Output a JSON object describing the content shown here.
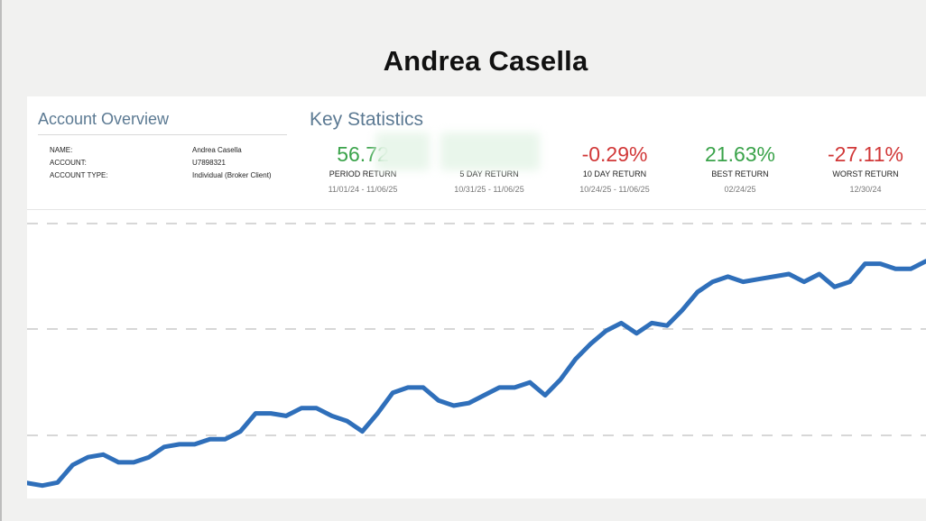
{
  "slide": {
    "title": "Andrea Casella"
  },
  "overview": {
    "title": "Account Overview",
    "rows": [
      {
        "label": "NAME:",
        "value": "Andrea Casella"
      },
      {
        "label": "ACCOUNT:",
        "value": "U7898321"
      },
      {
        "label": "ACCOUNT TYPE:",
        "value": "Individual (Broker Client)"
      }
    ]
  },
  "stats": {
    "title": "Key Statistics",
    "items": [
      {
        "value": "56.72",
        "label": "PERIOD RETURN",
        "dates": "11/01/24 - 11/06/25",
        "tone": "positive"
      },
      {
        "value": "",
        "label": "5 DAY RETURN",
        "dates": "10/31/25 - 11/06/25",
        "tone": "positive"
      },
      {
        "value": "-0.29%",
        "label": "10 DAY RETURN",
        "dates": "10/24/25 - 11/06/25",
        "tone": "negative"
      },
      {
        "value": "21.63%",
        "label": "BEST RETURN",
        "dates": "02/24/25",
        "tone": "positive"
      },
      {
        "value": "-27.11%",
        "label": "WORST RETURN",
        "dates": "12/30/24",
        "tone": "negative"
      }
    ]
  },
  "colors": {
    "positive": "#3aa34a",
    "negative": "#d13838",
    "line": "#2f6fba",
    "section_title": "#5c7a93"
  },
  "chart_data": {
    "type": "line",
    "series": [
      {
        "values": [
          0.0,
          -0.5,
          0.1,
          3.5,
          5.0,
          5.5,
          4.0,
          4.0,
          5.0,
          7.0,
          7.5,
          7.5,
          8.5,
          8.5,
          10.0,
          13.5,
          13.5,
          13.0,
          14.5,
          14.5,
          13.0,
          12.0,
          10.0,
          13.5,
          17.5,
          18.5,
          18.5,
          16.0,
          15.0,
          15.5,
          17.0,
          18.5,
          18.5,
          19.5,
          17.0,
          20.0,
          24.0,
          27.0,
          29.5,
          31.0,
          29.0,
          31.0,
          30.5,
          33.5,
          37.0,
          39.0,
          40.0,
          39.0,
          39.5,
          40.0,
          40.5,
          39.0,
          40.5,
          38.0,
          39.0,
          42.5,
          42.5,
          41.5,
          41.5,
          43.0
        ]
      }
    ],
    "grid": true
  }
}
